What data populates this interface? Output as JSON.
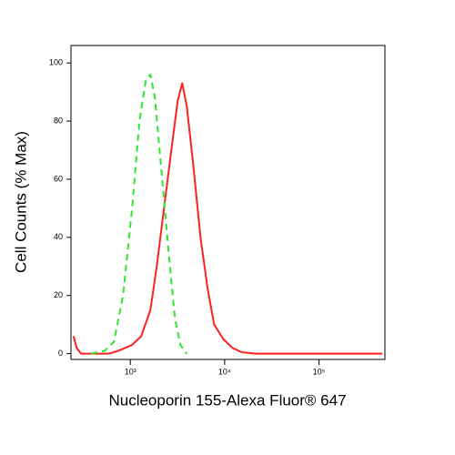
{
  "chart_data": {
    "type": "line",
    "x_label": "Nucleoporin 155-Alexa Fluor® 647",
    "y_label": "Cell Counts (% Max)",
    "x_scale": "log",
    "xlim": [
      235,
      500000
    ],
    "ylim": [
      -2,
      106
    ],
    "xticks": [
      {
        "value": 1000,
        "label": "10³"
      },
      {
        "value": 10000,
        "label": "10⁴"
      },
      {
        "value": 100000,
        "label": "10⁵"
      }
    ],
    "yticks": [
      0,
      20,
      40,
      60,
      80,
      100
    ],
    "series": [
      {
        "color": "#ff2020",
        "dash": false,
        "x": [
          250,
          270,
          300,
          600,
          748,
          1045,
          1306,
          1633,
          1907,
          2276,
          2722,
          3179,
          3553,
          3972,
          4645,
          5546,
          6627,
          7745,
          9680,
          12080,
          15100,
          21100,
          470000
        ],
        "values": [
          6,
          2,
          0,
          0,
          1,
          3,
          6,
          15,
          30,
          50,
          70,
          87,
          93,
          85,
          65,
          40,
          22,
          10,
          5,
          2,
          0.5,
          0,
          0
        ]
      },
      {
        "color": "#2ee62e",
        "dash": true,
        "x": [
          385,
          535,
          670,
          837,
          1045,
          1250,
          1460,
          1633,
          1824,
          2178,
          2545,
          2974,
          3397,
          3972
        ],
        "values": [
          0,
          1,
          4,
          20,
          50,
          80,
          94,
          96,
          88,
          60,
          35,
          12,
          3,
          0
        ]
      }
    ]
  }
}
